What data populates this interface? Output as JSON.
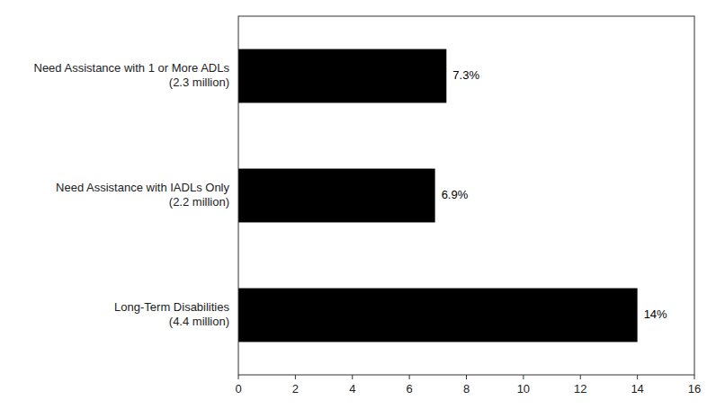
{
  "chart_data": {
    "type": "bar",
    "orientation": "horizontal",
    "categories": [
      "Long-Term Disabilities\n(4.4 million)",
      "Need Assistance with IADLs Only\n(2.2 million)",
      "Need Assistance with 1 or More ADLs\n(2.3 million)"
    ],
    "values": [
      14,
      6.9,
      7.3
    ],
    "value_labels": [
      "14%",
      "6.9%",
      "7.3%"
    ],
    "data_labels": true,
    "color": "#000000",
    "xlim": [
      0,
      16
    ],
    "xticks": [
      0,
      2,
      4,
      6,
      8,
      10,
      12,
      14,
      16
    ]
  }
}
